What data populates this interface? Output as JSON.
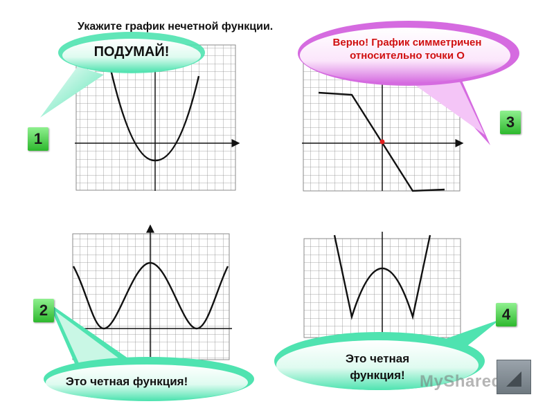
{
  "title": "Укажите график нечетной функции.",
  "options": [
    {
      "number": "1",
      "answer": "ПОДУМАЙ!"
    },
    {
      "number": "2",
      "answer": "Это четная функция!"
    },
    {
      "number": "3",
      "answer": "Верно! График симметричен относительно точки О"
    },
    {
      "number": "4",
      "answer": "Это четная функция!"
    }
  ],
  "colors": {
    "number_badge": "#3fd13f",
    "bubble_green": "#4fe3b0",
    "bubble_pink": "#e08ae8",
    "answer_red": "#d01010",
    "origin_point": "#e02020"
  },
  "watermark": "MyShared",
  "icons": {
    "next": "triangle-next-icon"
  }
}
